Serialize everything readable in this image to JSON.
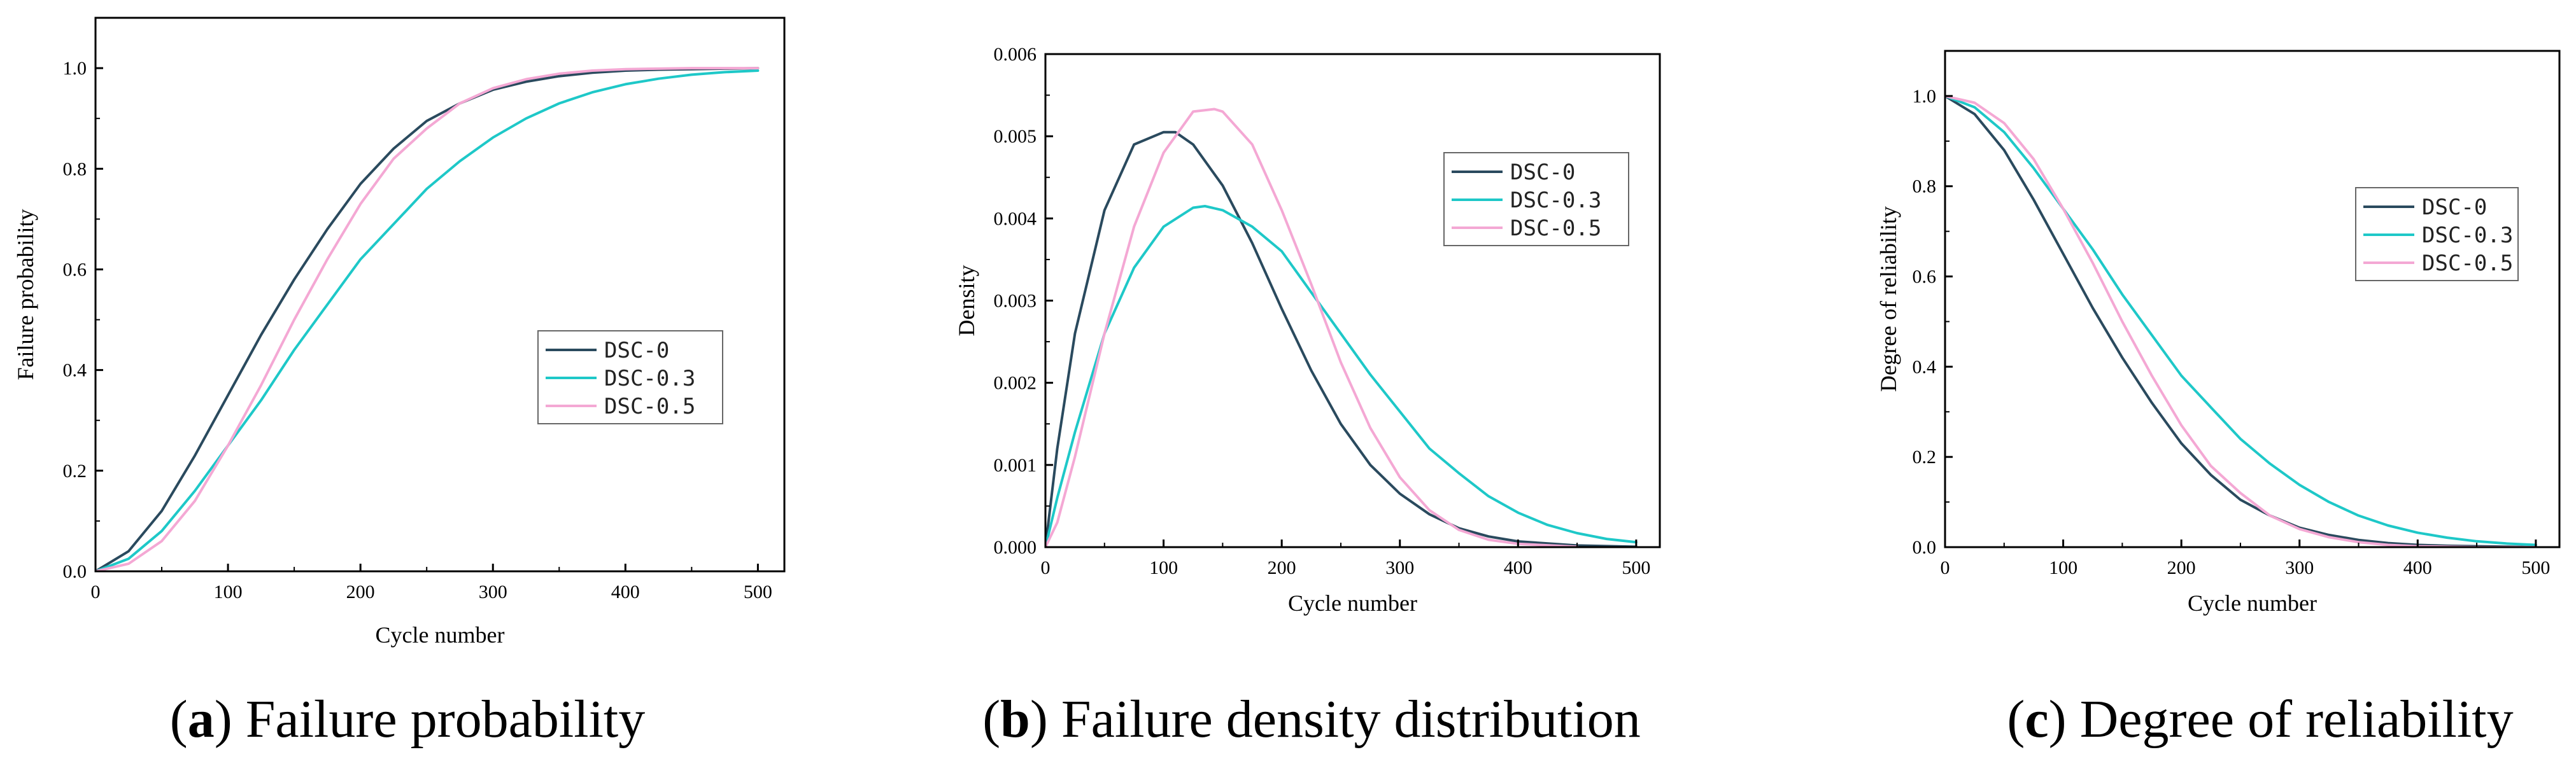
{
  "chart_data": [
    {
      "id": "a",
      "type": "line",
      "title": "Failure probability",
      "caption_letter": "a",
      "xlabel": "Cycle number",
      "ylabel": "Failure probability",
      "xlim": [
        0,
        520
      ],
      "ylim": [
        0,
        1.1
      ],
      "xticks": [
        0,
        100,
        200,
        300,
        400,
        500
      ],
      "yticks": [
        0.0,
        0.2,
        0.4,
        0.6,
        0.8,
        1.0
      ],
      "ytick_labels": [
        "0.0",
        "0.2",
        "0.4",
        "0.6",
        "0.8",
        "1.0"
      ],
      "legend_position": "middle-right",
      "series": [
        {
          "name": "DSC-0",
          "color": "#2a4a5e",
          "x": [
            0,
            25,
            50,
            75,
            100,
            125,
            150,
            175,
            200,
            225,
            250,
            275,
            300,
            325,
            350,
            375,
            400,
            425,
            450,
            475,
            500
          ],
          "y": [
            0.0,
            0.04,
            0.12,
            0.23,
            0.35,
            0.47,
            0.58,
            0.68,
            0.77,
            0.84,
            0.895,
            0.93,
            0.957,
            0.973,
            0.984,
            0.991,
            0.995,
            0.997,
            0.998,
            0.999,
            1.0
          ]
        },
        {
          "name": "DSC-0.3",
          "color": "#1ec8c8",
          "x": [
            0,
            25,
            50,
            75,
            100,
            125,
            150,
            175,
            200,
            225,
            250,
            275,
            300,
            325,
            350,
            375,
            400,
            425,
            450,
            475,
            500
          ],
          "y": [
            0.0,
            0.025,
            0.08,
            0.16,
            0.25,
            0.34,
            0.44,
            0.53,
            0.62,
            0.69,
            0.76,
            0.815,
            0.862,
            0.9,
            0.93,
            0.952,
            0.968,
            0.979,
            0.987,
            0.992,
            0.995
          ]
        },
        {
          "name": "DSC-0.5",
          "color": "#f4a8d4",
          "x": [
            0,
            25,
            50,
            75,
            100,
            125,
            150,
            175,
            200,
            225,
            250,
            275,
            300,
            325,
            350,
            375,
            400,
            425,
            450,
            475,
            500
          ],
          "y": [
            0.0,
            0.015,
            0.06,
            0.14,
            0.25,
            0.37,
            0.5,
            0.62,
            0.73,
            0.82,
            0.88,
            0.93,
            0.96,
            0.978,
            0.989,
            0.995,
            0.998,
            0.999,
            1.0,
            1.0,
            1.0
          ]
        }
      ]
    },
    {
      "id": "b",
      "type": "line",
      "title": "Failure density distribution",
      "caption_letter": "b",
      "xlabel": "Cycle number",
      "ylabel": "Density",
      "xlim": [
        0,
        520
      ],
      "ylim": [
        0,
        0.006
      ],
      "xticks": [
        0,
        100,
        200,
        300,
        400,
        500
      ],
      "yticks": [
        0.0,
        0.001,
        0.002,
        0.003,
        0.004,
        0.005,
        0.006
      ],
      "ytick_labels": [
        "0.000",
        "0.001",
        "0.002",
        "0.003",
        "0.004",
        "0.005",
        "0.006"
      ],
      "legend_position": "top-right",
      "series": [
        {
          "name": "DSC-0",
          "color": "#2a4a5e",
          "x": [
            0,
            10,
            25,
            50,
            75,
            100,
            110,
            125,
            150,
            175,
            200,
            225,
            250,
            275,
            300,
            325,
            350,
            375,
            400,
            450,
            500
          ],
          "y": [
            0.0,
            0.0012,
            0.0026,
            0.0041,
            0.0049,
            0.00505,
            0.00505,
            0.0049,
            0.0044,
            0.0037,
            0.0029,
            0.00215,
            0.0015,
            0.001,
            0.00065,
            0.0004,
            0.00023,
            0.00013,
            7e-05,
            2e-05,
            5e-06
          ]
        },
        {
          "name": "DSC-0.3",
          "color": "#1ec8c8",
          "x": [
            0,
            10,
            25,
            50,
            75,
            100,
            125,
            135,
            150,
            175,
            200,
            225,
            250,
            275,
            300,
            325,
            350,
            375,
            400,
            425,
            450,
            475,
            500
          ],
          "y": [
            0.0,
            0.0006,
            0.0014,
            0.0026,
            0.0034,
            0.0039,
            0.00413,
            0.00415,
            0.0041,
            0.0039,
            0.0036,
            0.0031,
            0.0026,
            0.0021,
            0.00165,
            0.0012,
            0.0009,
            0.00062,
            0.00042,
            0.00027,
            0.00017,
            0.0001,
            6e-05
          ]
        },
        {
          "name": "DSC-0.5",
          "color": "#f4a8d4",
          "x": [
            0,
            10,
            25,
            50,
            75,
            100,
            125,
            143,
            150,
            175,
            200,
            225,
            250,
            275,
            300,
            325,
            350,
            375,
            400,
            450
          ],
          "y": [
            0.0,
            0.0003,
            0.0011,
            0.0026,
            0.0039,
            0.0048,
            0.0053,
            0.00533,
            0.0053,
            0.0049,
            0.0041,
            0.0032,
            0.00225,
            0.00145,
            0.00085,
            0.00045,
            0.00021,
            9e-05,
            4e-05,
            5e-06
          ]
        }
      ]
    },
    {
      "id": "c",
      "type": "line",
      "title": "Degree of reliability",
      "caption_letter": "c",
      "xlabel": "Cycle number",
      "ylabel": "Degree of reliability",
      "xlim": [
        0,
        520
      ],
      "ylim": [
        0,
        1.1
      ],
      "xticks": [
        0,
        100,
        200,
        300,
        400,
        500
      ],
      "yticks": [
        0.0,
        0.2,
        0.4,
        0.6,
        0.8,
        1.0
      ],
      "ytick_labels": [
        "0.0",
        "0.2",
        "0.4",
        "0.6",
        "0.8",
        "1.0"
      ],
      "legend_position": "top-right",
      "series": [
        {
          "name": "DSC-0",
          "color": "#2a4a5e",
          "x": [
            0,
            25,
            50,
            75,
            100,
            125,
            150,
            175,
            200,
            225,
            250,
            275,
            300,
            325,
            350,
            375,
            400,
            425,
            450,
            475,
            500
          ],
          "y": [
            1.0,
            0.96,
            0.88,
            0.77,
            0.65,
            0.53,
            0.42,
            0.32,
            0.23,
            0.16,
            0.105,
            0.07,
            0.043,
            0.027,
            0.016,
            0.009,
            0.005,
            0.003,
            0.002,
            0.001,
            0.0
          ]
        },
        {
          "name": "DSC-0.3",
          "color": "#1ec8c8",
          "x": [
            0,
            25,
            50,
            75,
            100,
            125,
            150,
            175,
            200,
            225,
            250,
            275,
            300,
            325,
            350,
            375,
            400,
            425,
            450,
            475,
            500
          ],
          "y": [
            1.0,
            0.975,
            0.92,
            0.84,
            0.75,
            0.66,
            0.56,
            0.47,
            0.38,
            0.31,
            0.24,
            0.185,
            0.138,
            0.1,
            0.07,
            0.048,
            0.032,
            0.021,
            0.013,
            0.008,
            0.005
          ]
        },
        {
          "name": "DSC-0.5",
          "color": "#f4a8d4",
          "x": [
            0,
            25,
            50,
            75,
            100,
            125,
            150,
            175,
            200,
            225,
            250,
            275,
            300,
            325,
            350,
            375,
            400,
            425,
            450,
            475,
            500
          ],
          "y": [
            1.0,
            0.985,
            0.94,
            0.86,
            0.75,
            0.63,
            0.5,
            0.38,
            0.27,
            0.18,
            0.12,
            0.07,
            0.04,
            0.022,
            0.011,
            0.005,
            0.002,
            0.001,
            0.0,
            0.0,
            0.0
          ]
        }
      ]
    }
  ]
}
